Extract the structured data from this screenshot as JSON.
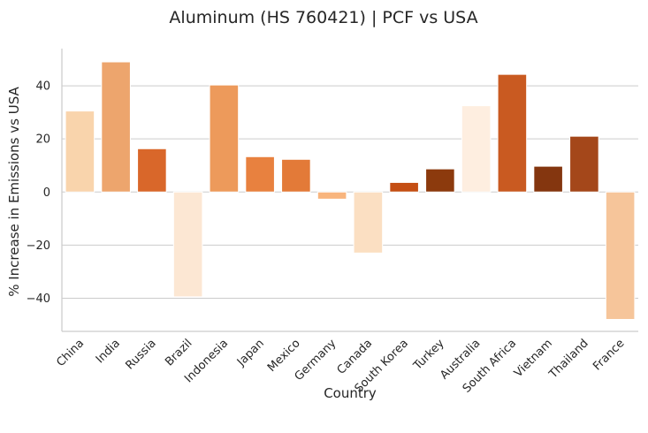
{
  "chart_data": {
    "type": "bar",
    "title": "Aluminum (HS 760421) | PCF vs USA",
    "xlabel": "Country",
    "ylabel": "% Increase in Emissions vs USA",
    "ylim": [
      -52.5,
      54
    ],
    "yticks": [
      -40,
      -20,
      0,
      20,
      40
    ],
    "grid": true,
    "categories": [
      "China",
      "India",
      "Russia",
      "Brazil",
      "Indonesia",
      "Japan",
      "Mexico",
      "Germany",
      "Canada",
      "South Korea",
      "Turkey",
      "Australia",
      "South Africa",
      "Vietnam",
      "Thailand",
      "France"
    ],
    "values": [
      30.5,
      49,
      16.3,
      -39.5,
      40.3,
      13.3,
      12.3,
      -2.7,
      -23,
      3.6,
      8.7,
      32.5,
      44.3,
      9.7,
      21,
      -48
    ],
    "colors": [
      "#f9d4ac",
      "#eda56d",
      "#d9672a",
      "#fce7d3",
      "#ed9a5b",
      "#e8813f",
      "#e37a38",
      "#f8b57d",
      "#fbdfc2",
      "#c44e13",
      "#8c3a0d",
      "#feeee0",
      "#c95a21",
      "#84360f",
      "#a4471a",
      "#f6c59a"
    ]
  }
}
